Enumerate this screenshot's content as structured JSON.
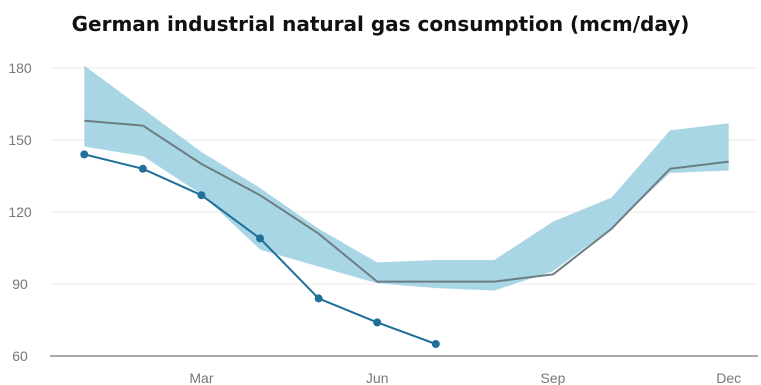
{
  "chart_data": {
    "type": "line",
    "title": "German industrial natural gas consumption (mcm/day)",
    "xlabel": "",
    "ylabel": "",
    "x_months": [
      1,
      2,
      3,
      4,
      5,
      6,
      7,
      8,
      9,
      10,
      11,
      12
    ],
    "x_ticks": [
      {
        "label": "Mar",
        "month": 3
      },
      {
        "label": "Jun",
        "month": 6
      },
      {
        "label": "Sep",
        "month": 9
      },
      {
        "label": "Dec",
        "month": 12
      }
    ],
    "y_ticks": [
      60,
      90,
      120,
      150,
      180
    ],
    "ylim": [
      60,
      180
    ],
    "xlim": [
      0.5,
      12.5
    ],
    "grid": "horizontal",
    "range_band": {
      "upper": [
        181,
        163,
        145,
        130,
        113,
        99,
        100,
        100,
        116,
        126,
        154,
        157
      ],
      "lower": [
        147,
        143,
        127,
        104,
        97,
        90,
        88,
        87,
        95,
        113,
        136,
        137
      ]
    },
    "series": [
      {
        "values": [
          158,
          156,
          140,
          127,
          111,
          91,
          91,
          91,
          94,
          113,
          138,
          141
        ]
      },
      {
        "values": [
          144,
          138,
          127,
          109,
          84,
          74,
          65
        ],
        "markers": true
      }
    ],
    "colors": {
      "band": "#a8d6e4",
      "band_line": "#ffffff",
      "average_line": "#6c7d83",
      "current_line": "#1f6f99",
      "grid": "#e8e8e8",
      "tick_text": "#777777",
      "axis": "#777777"
    }
  }
}
